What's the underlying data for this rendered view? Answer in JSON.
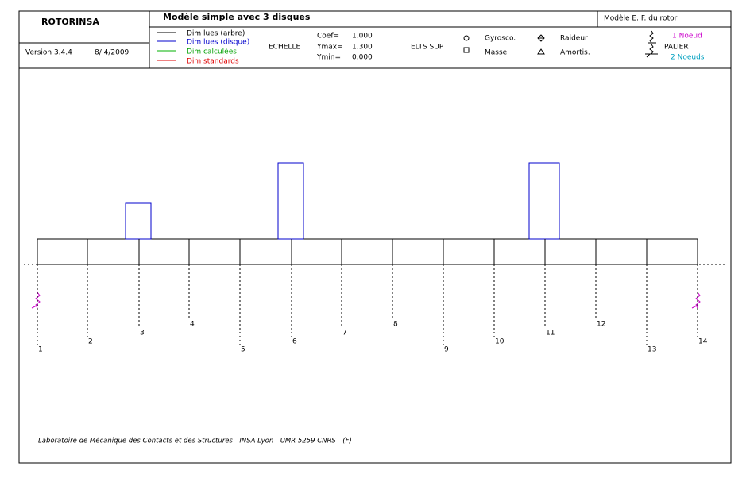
{
  "header": {
    "program": "ROTORINSA",
    "version": "Version 3.4.4",
    "date": "8/ 4/2009",
    "title": "Modèle simple avec 3 disques",
    "model": "Modèle E. F. du rotor"
  },
  "legend": [
    "Dim lues (arbre)",
    "Dim lues (disque)",
    "Dim calculées",
    "Dim standards"
  ],
  "scale": {
    "label": "ECHELLE",
    "rows": [
      [
        "Coef=",
        "1.000"
      ],
      [
        "Ymax=",
        "1.300"
      ],
      [
        "Ymin=",
        "0.000"
      ]
    ]
  },
  "extras": {
    "label": "ELTS SUP",
    "items": [
      "Gyrosco.",
      "Masse",
      "Raideur",
      "Amortis."
    ]
  },
  "bearing": {
    "one": "1 Noeud",
    "label": "PALIER",
    "two": "2 Noeuds"
  },
  "nodes": [
    "1",
    "2",
    "3",
    "4",
    "5",
    "6",
    "7",
    "8",
    "9",
    "10",
    "11",
    "12",
    "13",
    "14"
  ],
  "footer": "Laboratoire de Mécanique des Contacts et des Structures - INSA Lyon - UMR 5259 CNRS - (F)"
}
